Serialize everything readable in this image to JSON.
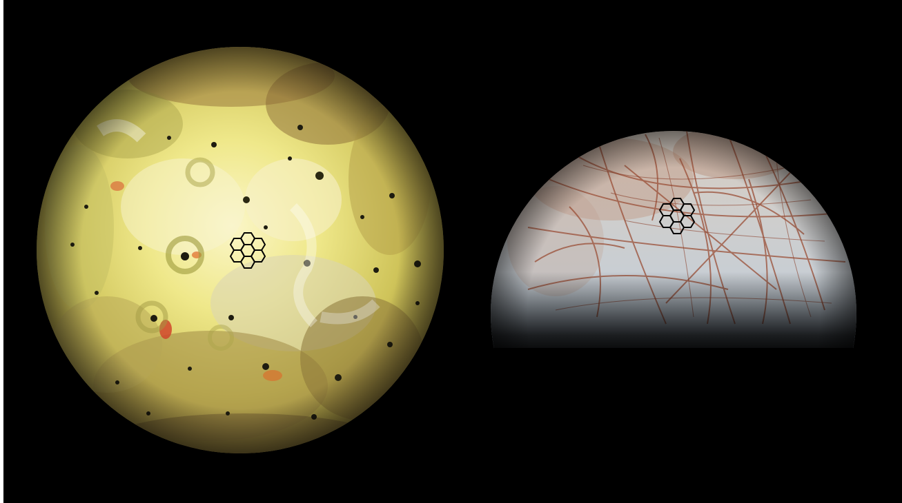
{
  "scene": {
    "background_color": "#000000",
    "frame_border_color": "#ffffff",
    "subjects": [
      {
        "name": "io",
        "kind": "moon",
        "palette": {
          "base": "#e8e27a",
          "light": "#f4f0c0",
          "olive": "#a8a24a",
          "brown": "#8a6a3a",
          "red": "#d04a2a",
          "spot": "#1a1a0e"
        },
        "overlay": "hexagonal-mirror-icon"
      },
      {
        "name": "europa",
        "kind": "moon",
        "visible_fraction": "upper-half",
        "palette": {
          "ice": "#c9d2d8",
          "blue": "#8aa6c8",
          "lineae": "#9a4e36",
          "tint": "#b98a70"
        },
        "overlay": "hexagonal-mirror-icon"
      }
    ],
    "overlay_stroke_color": "#000000"
  }
}
